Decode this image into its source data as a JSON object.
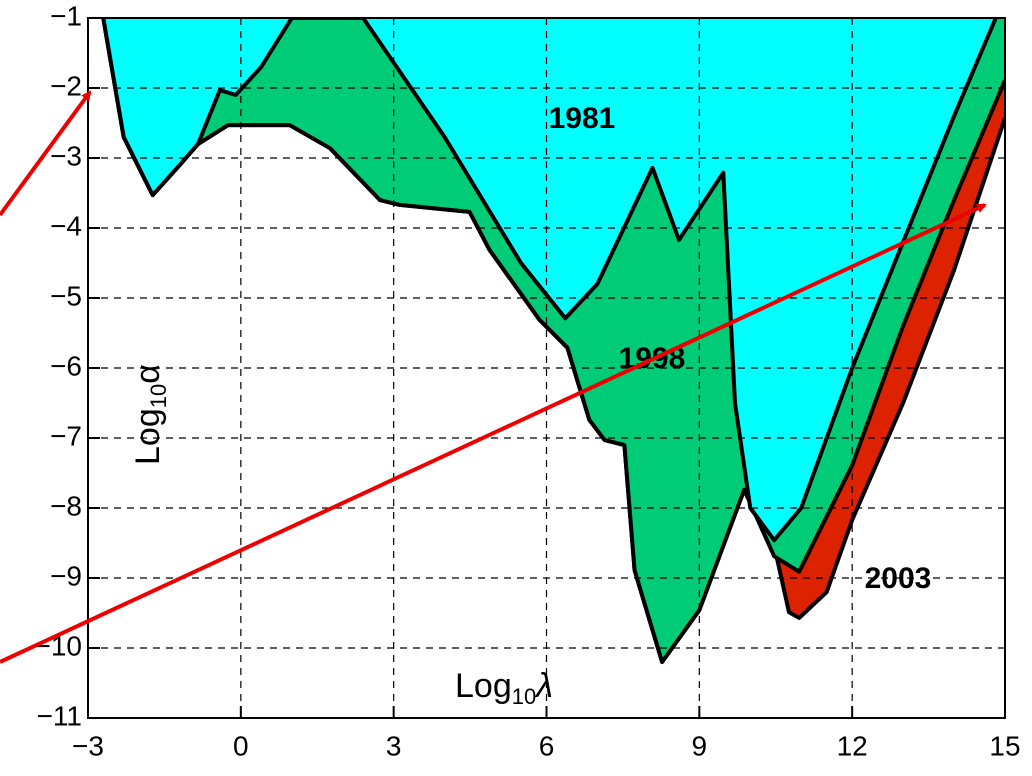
{
  "chart_data": {
    "type": "area",
    "x_label": {
      "base": "Log",
      "sub": "10",
      "var": "λ"
    },
    "y_label": {
      "base": "Log",
      "sub": "10",
      "var": "α"
    },
    "xlim": [
      -3,
      15
    ],
    "ylim": [
      -11,
      -1
    ],
    "xticks": [
      {
        "value": -3,
        "label": "−3"
      },
      0,
      3,
      6,
      9,
      12,
      15
    ],
    "yticks": [
      {
        "value": -1,
        "label": "−1"
      },
      {
        "value": -2,
        "label": "−2"
      },
      {
        "value": -3,
        "label": "−3"
      },
      {
        "value": -4,
        "label": "−4"
      },
      {
        "value": -5,
        "label": "−5"
      },
      {
        "value": -6,
        "label": "−6"
      },
      {
        "value": -7,
        "label": "−7"
      },
      {
        "value": -8,
        "label": "−8"
      },
      {
        "value": -9,
        "label": "−9"
      },
      {
        "value": -10,
        "label": "−10"
      },
      {
        "value": -11,
        "label": "−11"
      }
    ],
    "grid": true,
    "series": [
      {
        "name": "1981",
        "color": "#00ffff",
        "x": [
          -2.7,
          -2.3,
          -1.73,
          -1.2,
          -0.84,
          -0.41,
          -0.1,
          0.4,
          1.0,
          2.4,
          4.0,
          5.5,
          6.37,
          7.0,
          8.08,
          8.6,
          9.47,
          9.7,
          10.0,
          10.47,
          11.0,
          12.0,
          13.0,
          14.0,
          14.82
        ],
        "values": [
          -1,
          -2.7,
          -3.53,
          -3.1,
          -2.8,
          -2.03,
          -2.1,
          -1.7,
          -1,
          -1,
          -2.7,
          -4.5,
          -5.29,
          -4.8,
          -3.14,
          -4.17,
          -3.21,
          -6.5,
          -8.0,
          -8.46,
          -8.0,
          -6.0,
          -4.2,
          -2.4,
          -1
        ]
      },
      {
        "name": "1998",
        "color": "#00cc77",
        "x": [
          -2.7,
          -2.3,
          -1.73,
          -1.2,
          -0.84,
          -0.25,
          0.96,
          1.75,
          2.73,
          3.12,
          4.49,
          4.88,
          5.86,
          6.41,
          6.84,
          7.14,
          7.53,
          7.73,
          8.27,
          9.0,
          9.88,
          10.47,
          10.96,
          12.0,
          13.0,
          14.0,
          15.0
        ],
        "values": [
          -1,
          -2.7,
          -3.53,
          -3.1,
          -2.8,
          -2.53,
          -2.53,
          -2.86,
          -3.6,
          -3.67,
          -3.77,
          -4.31,
          -5.31,
          -5.71,
          -6.74,
          -7.03,
          -7.1,
          -8.89,
          -10.2,
          -9.46,
          -7.74,
          -8.69,
          -8.91,
          -7.39,
          -5.4,
          -3.6,
          -1.89
        ]
      },
      {
        "name": "2003",
        "color": "#dd2200",
        "x": [
          -2.7,
          -2.3,
          -1.73,
          -1.2,
          -0.84,
          -0.25,
          0.96,
          1.75,
          2.73,
          3.12,
          4.49,
          4.88,
          5.86,
          6.41,
          6.84,
          7.14,
          7.53,
          7.73,
          8.27,
          9.0,
          9.88,
          10.53,
          10.76,
          10.96,
          11.5,
          12.0,
          13.0,
          14.0,
          15.0
        ],
        "values": [
          -1,
          -2.7,
          -3.53,
          -3.1,
          -2.8,
          -2.53,
          -2.53,
          -2.86,
          -3.6,
          -3.67,
          -3.77,
          -4.31,
          -5.31,
          -5.71,
          -6.74,
          -7.03,
          -7.1,
          -8.89,
          -10.2,
          -9.46,
          -7.74,
          -8.74,
          -9.49,
          -9.57,
          -9.2,
          -8.17,
          -6.5,
          -4.6,
          -2.43
        ]
      }
    ]
  }
}
